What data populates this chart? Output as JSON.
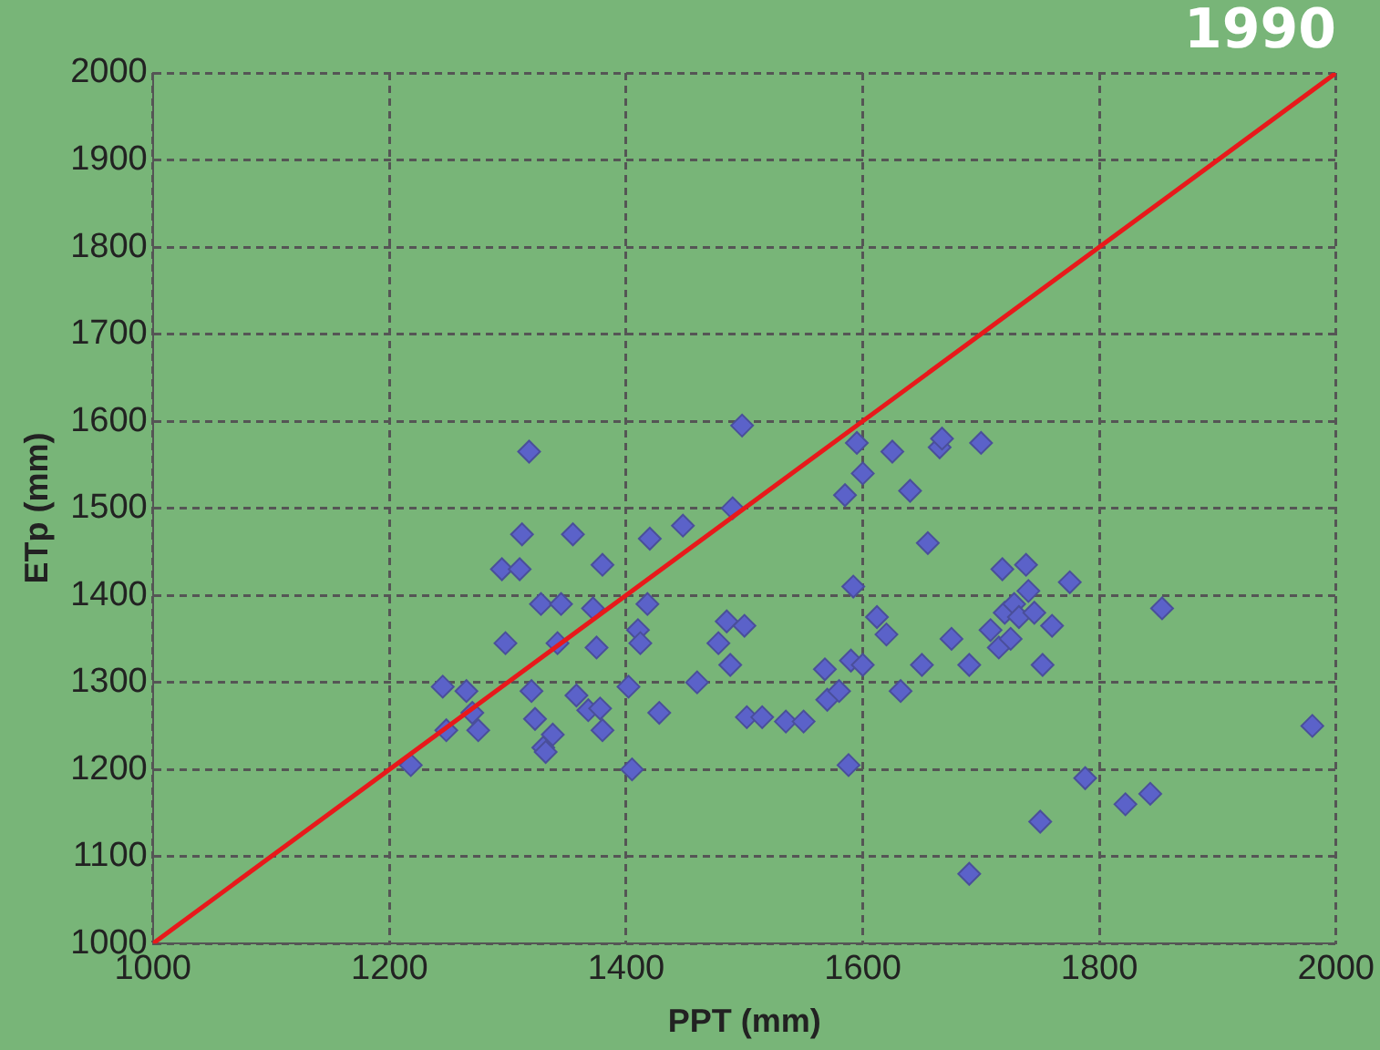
{
  "chart_data": {
    "type": "scatter",
    "title": "1990",
    "xlabel": "PPT (mm)",
    "ylabel": "ETp (mm)",
    "xlim": [
      1000,
      2000
    ],
    "xticks": [
      1000,
      1200,
      1400,
      1600,
      1800,
      2000
    ],
    "ylim": [
      1000,
      2000
    ],
    "yticks": [
      1000,
      1100,
      1200,
      1300,
      1400,
      1500,
      1600,
      1700,
      1800,
      1900,
      2000
    ],
    "grid": true,
    "series": [
      {
        "type": "scatter",
        "marker": "diamond",
        "color": "#5b62c9",
        "x": [
          1218,
          1245,
          1248,
          1265,
          1270,
          1275,
          1295,
          1298,
          1310,
          1312,
          1318,
          1320,
          1323,
          1328,
          1330,
          1332,
          1338,
          1342,
          1345,
          1355,
          1358,
          1368,
          1372,
          1375,
          1378,
          1380,
          1380,
          1402,
          1405,
          1410,
          1412,
          1418,
          1420,
          1428,
          1448,
          1460,
          1478,
          1485,
          1488,
          1490,
          1498,
          1500,
          1502,
          1515,
          1535,
          1550,
          1568,
          1570,
          1580,
          1585,
          1588,
          1590,
          1592,
          1595,
          1600,
          1600,
          1612,
          1620,
          1625,
          1632,
          1640,
          1650,
          1655,
          1665,
          1667,
          1675,
          1690,
          1690,
          1700,
          1708,
          1715,
          1718,
          1720,
          1725,
          1728,
          1732,
          1738,
          1740,
          1745,
          1750,
          1752,
          1760,
          1775,
          1788,
          1822,
          1843,
          1853,
          1980
        ],
        "values": [
          1205,
          1295,
          1245,
          1290,
          1265,
          1245,
          1430,
          1345,
          1430,
          1470,
          1565,
          1290,
          1258,
          1390,
          1225,
          1220,
          1240,
          1345,
          1390,
          1470,
          1285,
          1268,
          1385,
          1340,
          1270,
          1245,
          1435,
          1295,
          1200,
          1360,
          1345,
          1390,
          1465,
          1265,
          1480,
          1300,
          1345,
          1370,
          1320,
          1500,
          1595,
          1365,
          1260,
          1260,
          1255,
          1255,
          1315,
          1280,
          1290,
          1515,
          1205,
          1325,
          1410,
          1575,
          1540,
          1320,
          1375,
          1355,
          1565,
          1290,
          1520,
          1320,
          1460,
          1570,
          1580,
          1350,
          1320,
          1080,
          1575,
          1360,
          1340,
          1430,
          1380,
          1350,
          1390,
          1375,
          1435,
          1405,
          1380,
          1140,
          1320,
          1365,
          1415,
          1190,
          1160,
          1172,
          1385,
          1250
        ]
      },
      {
        "type": "line",
        "marker": "none",
        "color": "#e8191b",
        "x": [
          1000,
          2000
        ],
        "values": [
          1000,
          2000
        ]
      }
    ]
  }
}
